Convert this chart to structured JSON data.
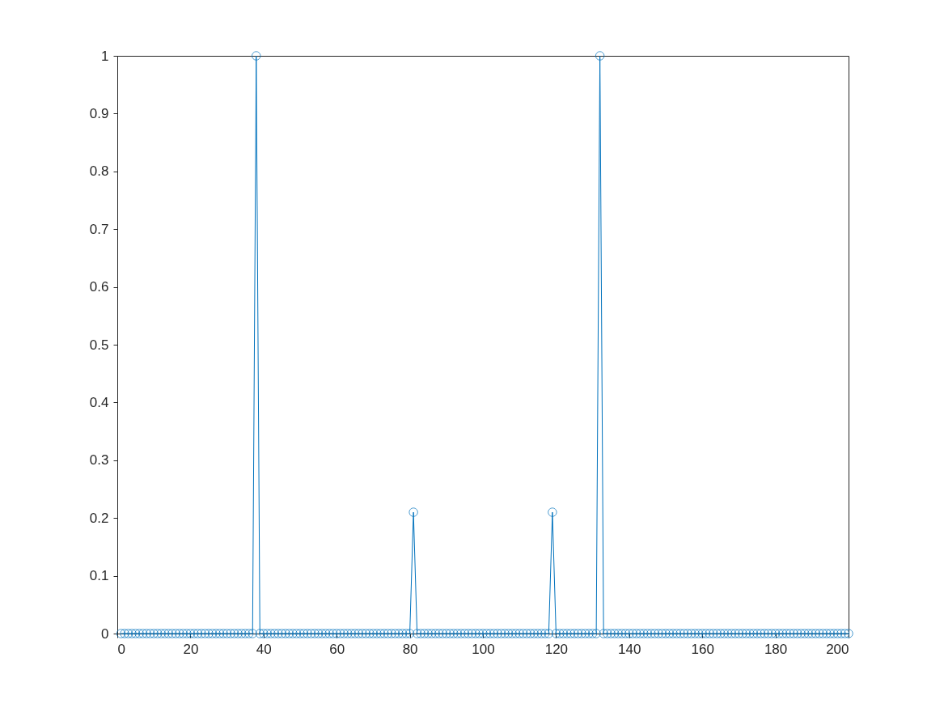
{
  "chart_data": {
    "type": "line",
    "marker": "circle",
    "line_style": "solid",
    "grid": false,
    "xlim": [
      0,
      200
    ],
    "xticks": [
      0,
      20,
      40,
      60,
      80,
      100,
      120,
      140,
      160,
      180,
      200
    ],
    "ylim": [
      0,
      1
    ],
    "yticks": [
      0,
      0.1,
      0.2,
      0.3,
      0.4,
      0.5,
      0.6,
      0.7,
      0.8,
      0.9,
      1
    ],
    "x": [
      1,
      2,
      3,
      4,
      5,
      6,
      7,
      8,
      9,
      10,
      11,
      12,
      13,
      14,
      15,
      16,
      17,
      18,
      19,
      20,
      21,
      22,
      23,
      24,
      25,
      26,
      27,
      28,
      29,
      30,
      31,
      32,
      33,
      34,
      35,
      36,
      37,
      38,
      39,
      40,
      41,
      42,
      43,
      44,
      45,
      46,
      47,
      48,
      49,
      50,
      51,
      52,
      53,
      54,
      55,
      56,
      57,
      58,
      59,
      60,
      61,
      62,
      63,
      64,
      65,
      66,
      67,
      68,
      69,
      70,
      71,
      72,
      73,
      74,
      75,
      76,
      77,
      78,
      79,
      80,
      81,
      82,
      83,
      84,
      85,
      86,
      87,
      88,
      89,
      90,
      91,
      92,
      93,
      94,
      95,
      96,
      97,
      98,
      99,
      100,
      101,
      102,
      103,
      104,
      105,
      106,
      107,
      108,
      109,
      110,
      111,
      112,
      113,
      114,
      115,
      116,
      117,
      118,
      119,
      120,
      121,
      122,
      123,
      124,
      125,
      126,
      127,
      128,
      129,
      130,
      131,
      132,
      133,
      134,
      135,
      136,
      137,
      138,
      139,
      140,
      141,
      142,
      143,
      144,
      145,
      146,
      147,
      148,
      149,
      150,
      151,
      152,
      153,
      154,
      155,
      156,
      157,
      158,
      159,
      160,
      161,
      162,
      163,
      164,
      165,
      166,
      167,
      168,
      169,
      170,
      171,
      172,
      173,
      174,
      175,
      176,
      177,
      178,
      179,
      180,
      181,
      182,
      183,
      184,
      185,
      186,
      187,
      188,
      189,
      190,
      191,
      192,
      193,
      194,
      195,
      196,
      197,
      198,
      199,
      200
    ],
    "series": [
      {
        "color": "#0072bd",
        "values": [
          0,
          0,
          0,
          0,
          0,
          0,
          0,
          0,
          0,
          0,
          0,
          0,
          0,
          0,
          0,
          0,
          0,
          0,
          0,
          0,
          0,
          0,
          0,
          0,
          0,
          0,
          0,
          0,
          0,
          0,
          0,
          0,
          0,
          0,
          0,
          0,
          0,
          1,
          0,
          0,
          0,
          0,
          0,
          0,
          0,
          0,
          0,
          0,
          0,
          0,
          0,
          0,
          0,
          0,
          0,
          0,
          0,
          0,
          0,
          0,
          0,
          0,
          0,
          0,
          0,
          0,
          0,
          0,
          0,
          0,
          0,
          0,
          0,
          0,
          0,
          0,
          0,
          0,
          0,
          0,
          0.21,
          0,
          0,
          0,
          0,
          0,
          0,
          0,
          0,
          0,
          0,
          0,
          0,
          0,
          0,
          0,
          0,
          0,
          0,
          0,
          0,
          0,
          0,
          0,
          0,
          0,
          0,
          0,
          0,
          0,
          0,
          0,
          0,
          0,
          0,
          0,
          0,
          0,
          0.21,
          0,
          0,
          0,
          0,
          0,
          0,
          0,
          0,
          0,
          0,
          0,
          0,
          1,
          0,
          0,
          0,
          0,
          0,
          0,
          0,
          0,
          0,
          0,
          0,
          0,
          0,
          0,
          0,
          0,
          0,
          0,
          0,
          0,
          0,
          0,
          0,
          0,
          0,
          0,
          0,
          0,
          0,
          0,
          0,
          0,
          0,
          0,
          0,
          0,
          0,
          0,
          0,
          0,
          0,
          0,
          0,
          0,
          0,
          0,
          0,
          0,
          0,
          0,
          0,
          0,
          0,
          0,
          0,
          0,
          0,
          0,
          0,
          0,
          0,
          0,
          0,
          0,
          0,
          0,
          0,
          0
        ]
      }
    ]
  }
}
